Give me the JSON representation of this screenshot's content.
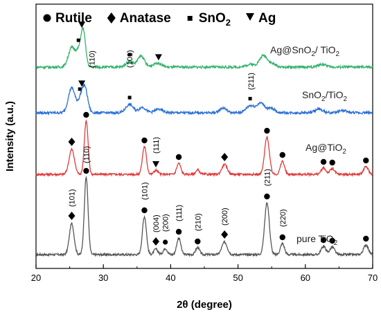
{
  "chart_data": {
    "type": "line",
    "xlabel": "2θ (degree)",
    "ylabel": "Intensity (a.u.)",
    "xlim": [
      20,
      70
    ],
    "x_ticks": [
      20,
      30,
      40,
      50,
      60,
      70
    ],
    "y_ticks_shown": false,
    "legend": {
      "placement": "top",
      "entries": [
        {
          "marker": "circle",
          "label": "Rutile"
        },
        {
          "marker": "diamond",
          "label": "Anatase"
        },
        {
          "marker": "square",
          "label": "SnO",
          "sub": "2"
        },
        {
          "marker": "triangle-down",
          "label": "Ag"
        }
      ]
    },
    "series": [
      {
        "name": "pure TiO",
        "name_sub": "2",
        "color": "#555555",
        "baseline": 368,
        "noise": 1.6,
        "peaks": [
          {
            "x": 25.3,
            "h": 45,
            "w": 0.35
          },
          {
            "x": 27.45,
            "h": 112,
            "w": 0.28
          },
          {
            "x": 36.1,
            "h": 55,
            "w": 0.3
          },
          {
            "x": 37.8,
            "h": 8,
            "w": 0.3
          },
          {
            "x": 39.2,
            "h": 9,
            "w": 0.3
          },
          {
            "x": 41.2,
            "h": 24,
            "w": 0.3
          },
          {
            "x": 44.0,
            "h": 10,
            "w": 0.3
          },
          {
            "x": 48.0,
            "h": 18,
            "w": 0.4
          },
          {
            "x": 54.3,
            "h": 75,
            "w": 0.35
          },
          {
            "x": 56.6,
            "h": 16,
            "w": 0.3
          },
          {
            "x": 62.7,
            "h": 12,
            "w": 0.35
          },
          {
            "x": 64.0,
            "h": 11,
            "w": 0.35
          },
          {
            "x": 69.0,
            "h": 14,
            "w": 0.35
          }
        ]
      },
      {
        "name": "Ag@TiO",
        "name_sub": "2",
        "color": "#e03c3c",
        "baseline": 252,
        "noise": 1.6,
        "peaks": [
          {
            "x": 25.3,
            "h": 36,
            "w": 0.4
          },
          {
            "x": 27.45,
            "h": 77,
            "w": 0.28
          },
          {
            "x": 36.1,
            "h": 40,
            "w": 0.3
          },
          {
            "x": 37.8,
            "h": 6,
            "w": 0.3
          },
          {
            "x": 41.2,
            "h": 16,
            "w": 0.3
          },
          {
            "x": 44.0,
            "h": 6,
            "w": 0.3
          },
          {
            "x": 48.0,
            "h": 14,
            "w": 0.4
          },
          {
            "x": 54.3,
            "h": 54,
            "w": 0.35
          },
          {
            "x": 56.6,
            "h": 19,
            "w": 0.3
          },
          {
            "x": 62.7,
            "h": 9,
            "w": 0.35
          },
          {
            "x": 64.0,
            "h": 8,
            "w": 0.35
          },
          {
            "x": 69.0,
            "h": 11,
            "w": 0.35
          }
        ]
      },
      {
        "name": "SnO",
        "name_sub": "2",
        "name_suffix": "/TiO",
        "name_suffix_sub": "2",
        "color": "#2b6fd6",
        "baseline": 163,
        "noise": 1.8,
        "peaks": [
          {
            "x": 25.3,
            "h": 36,
            "w": 0.5
          },
          {
            "x": 26.7,
            "h": 20,
            "w": 0.45
          },
          {
            "x": 27.3,
            "h": 30,
            "w": 0.4
          },
          {
            "x": 33.9,
            "h": 12,
            "w": 0.55
          },
          {
            "x": 35.8,
            "h": 8,
            "w": 0.5
          },
          {
            "x": 38.2,
            "h": 5,
            "w": 0.6
          },
          {
            "x": 47.8,
            "h": 7,
            "w": 0.5
          },
          {
            "x": 51.8,
            "h": 10,
            "w": 0.6
          },
          {
            "x": 53.4,
            "h": 14,
            "w": 0.6
          },
          {
            "x": 55.0,
            "h": 6,
            "w": 0.5
          },
          {
            "x": 62.0,
            "h": 5,
            "w": 0.6
          },
          {
            "x": 65.5,
            "h": 3,
            "w": 0.6
          }
        ]
      },
      {
        "name": "Ag@SnO",
        "name_sub": "2",
        "name_suffix": "/ TiO",
        "name_suffix_sub": "2",
        "color": "#33b36a",
        "baseline": 97,
        "noise": 1.8,
        "peaks": [
          {
            "x": 25.3,
            "h": 28,
            "w": 0.5
          },
          {
            "x": 26.3,
            "h": 18,
            "w": 0.4
          },
          {
            "x": 27.0,
            "h": 52,
            "w": 0.35
          },
          {
            "x": 33.9,
            "h": 8,
            "w": 0.55
          },
          {
            "x": 35.6,
            "h": 16,
            "w": 0.5
          },
          {
            "x": 38.0,
            "h": 6,
            "w": 0.6
          },
          {
            "x": 51.8,
            "h": 4,
            "w": 0.6
          },
          {
            "x": 53.8,
            "h": 17,
            "w": 0.6
          },
          {
            "x": 55.2,
            "h": 4,
            "w": 0.5
          },
          {
            "x": 62.5,
            "h": 4,
            "w": 0.6
          }
        ]
      }
    ],
    "annotations": {
      "pure TiO2": {
        "circle": [
          27.45,
          36.1,
          41.2,
          44.0,
          54.3,
          56.6,
          62.7,
          64.0,
          69.0
        ],
        "diamond": [
          25.3,
          37.8,
          48.0
        ],
        "circle_small": [
          39.2
        ],
        "hkl": [
          {
            "x": 25.3,
            "text": "(101)"
          },
          {
            "x": 27.45,
            "text": "(110)"
          },
          {
            "x": 36.1,
            "text": "(101)"
          },
          {
            "x": 37.8,
            "text": "(004)"
          },
          {
            "x": 39.2,
            "text": "(200)"
          },
          {
            "x": 41.2,
            "text": "(111)"
          },
          {
            "x": 44.0,
            "text": "(210)"
          },
          {
            "x": 48.0,
            "text": "(200)"
          },
          {
            "x": 54.3,
            "text": "(211)"
          },
          {
            "x": 56.6,
            "text": "(220)"
          }
        ]
      },
      "Ag@TiO2": {
        "circle": [
          27.45,
          36.1,
          41.2,
          54.3,
          56.6,
          62.7,
          64.0,
          69.0
        ],
        "diamond": [
          25.3,
          48.0
        ],
        "triangle": [
          37.8
        ],
        "hkl": [
          {
            "x": 37.8,
            "text": "(111)"
          }
        ]
      },
      "SnO2/TiO2": {
        "square": [
          26.5,
          33.9,
          51.8
        ],
        "triangle": [
          26.8
        ],
        "hkl": [
          {
            "x": 28.3,
            "text": "(110)"
          },
          {
            "x": 33.9,
            "text": "(101)"
          },
          {
            "x": 51.9,
            "text": "(211)"
          }
        ]
      },
      "Ag@SnO2/TiO2": {
        "square": [
          26.3,
          33.9
        ],
        "triangle": [
          26.8,
          38.2
        ]
      }
    }
  }
}
